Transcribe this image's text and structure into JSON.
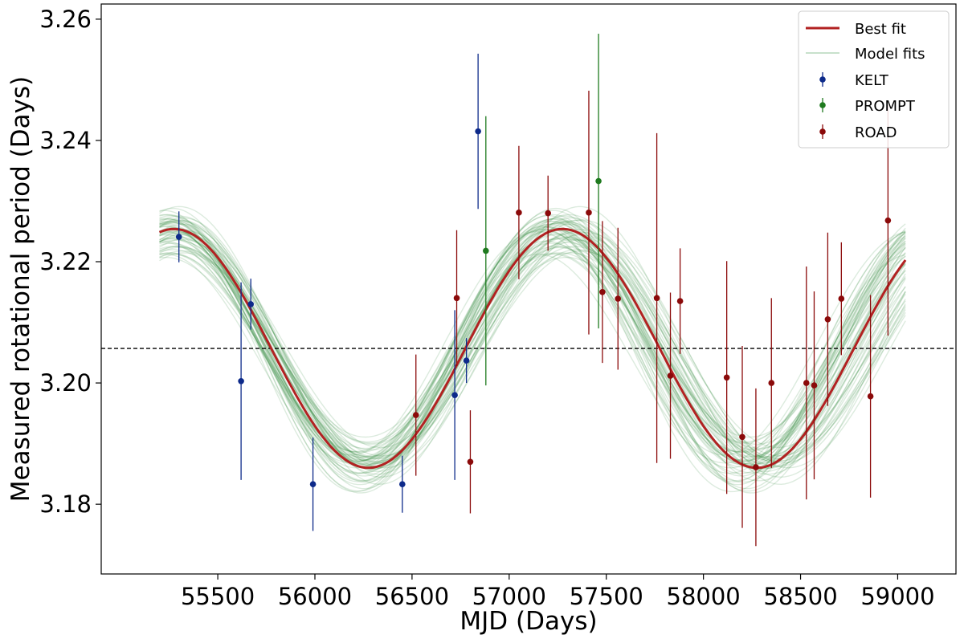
{
  "chart_data": {
    "type": "scatter",
    "xlabel": "MJD (Days)",
    "ylabel": "Measured rotational period (Days)",
    "xlim": [
      54900,
      59300
    ],
    "ylim": [
      3.1685,
      3.2625
    ],
    "xticks": [
      55500,
      56000,
      56500,
      57000,
      57500,
      58000,
      58500,
      59000
    ],
    "yticks": [
      3.18,
      3.2,
      3.22,
      3.24,
      3.26
    ],
    "ytick_labels": [
      "3.18",
      "3.20",
      "3.22",
      "3.24",
      "3.26"
    ],
    "reference_line": {
      "y": 3.2057,
      "style": "dashed",
      "color": "#000000"
    },
    "best_fit": {
      "name": "Best fit",
      "color": "#b22222",
      "mean": 3.2057,
      "amplitude": 0.0197,
      "period": 2000,
      "phase_ref_mjd": 55275,
      "x_range": [
        55200,
        59050
      ]
    },
    "model_fits": {
      "name": "Model fits",
      "color": "#2e8b3a",
      "count": 60
    },
    "series": [
      {
        "name": "KELT",
        "color": "#0d2a8a",
        "points": [
          {
            "x": 55300,
            "y": 3.2241,
            "err": 0.0042
          },
          {
            "x": 55620,
            "y": 3.2003,
            "err": 0.0163
          },
          {
            "x": 55670,
            "y": 3.213,
            "err": 0.0042
          },
          {
            "x": 55990,
            "y": 3.1833,
            "err": 0.0077
          },
          {
            "x": 56450,
            "y": 3.1833,
            "err": 0.0047
          },
          {
            "x": 56720,
            "y": 3.198,
            "err": 0.014
          },
          {
            "x": 56780,
            "y": 3.2037,
            "err": 0.0037
          },
          {
            "x": 56840,
            "y": 3.2415,
            "err": 0.0128
          }
        ]
      },
      {
        "name": "PROMPT",
        "color": "#1f7a1f",
        "points": [
          {
            "x": 56880,
            "y": 3.2218,
            "err": 0.0222
          },
          {
            "x": 57460,
            "y": 3.2333,
            "err": 0.0243
          }
        ]
      },
      {
        "name": "ROAD",
        "color": "#8b0a0a",
        "points": [
          {
            "x": 56520,
            "y": 3.1947,
            "err": 0.01
          },
          {
            "x": 56730,
            "y": 3.214,
            "err": 0.0112
          },
          {
            "x": 56800,
            "y": 3.187,
            "err": 0.0085
          },
          {
            "x": 57050,
            "y": 3.2281,
            "err": 0.011
          },
          {
            "x": 57200,
            "y": 3.228,
            "err": 0.0062
          },
          {
            "x": 57410,
            "y": 3.2281,
            "err": 0.0201
          },
          {
            "x": 57480,
            "y": 3.215,
            "err": 0.0117
          },
          {
            "x": 57560,
            "y": 3.2139,
            "err": 0.0117
          },
          {
            "x": 57760,
            "y": 3.214,
            "err": 0.0272
          },
          {
            "x": 57830,
            "y": 3.2012,
            "err": 0.0137
          },
          {
            "x": 57880,
            "y": 3.2135,
            "err": 0.0087
          },
          {
            "x": 58120,
            "y": 3.2009,
            "err": 0.0192
          },
          {
            "x": 58200,
            "y": 3.1911,
            "err": 0.015
          },
          {
            "x": 58270,
            "y": 3.1861,
            "err": 0.013
          },
          {
            "x": 58350,
            "y": 3.2,
            "err": 0.014
          },
          {
            "x": 58530,
            "y": 3.2,
            "err": 0.0192
          },
          {
            "x": 58570,
            "y": 3.1996,
            "err": 0.0155
          },
          {
            "x": 58640,
            "y": 3.2105,
            "err": 0.0143
          },
          {
            "x": 58710,
            "y": 3.2139,
            "err": 0.0093
          },
          {
            "x": 58860,
            "y": 3.1978,
            "err": 0.0167
          },
          {
            "x": 58950,
            "y": 3.2268,
            "err": 0.019
          }
        ]
      }
    ],
    "legend": {
      "position": "top-right",
      "entries": [
        "Best fit",
        "Model fits",
        "KELT",
        "PROMPT",
        "ROAD"
      ]
    },
    "grid": false
  }
}
